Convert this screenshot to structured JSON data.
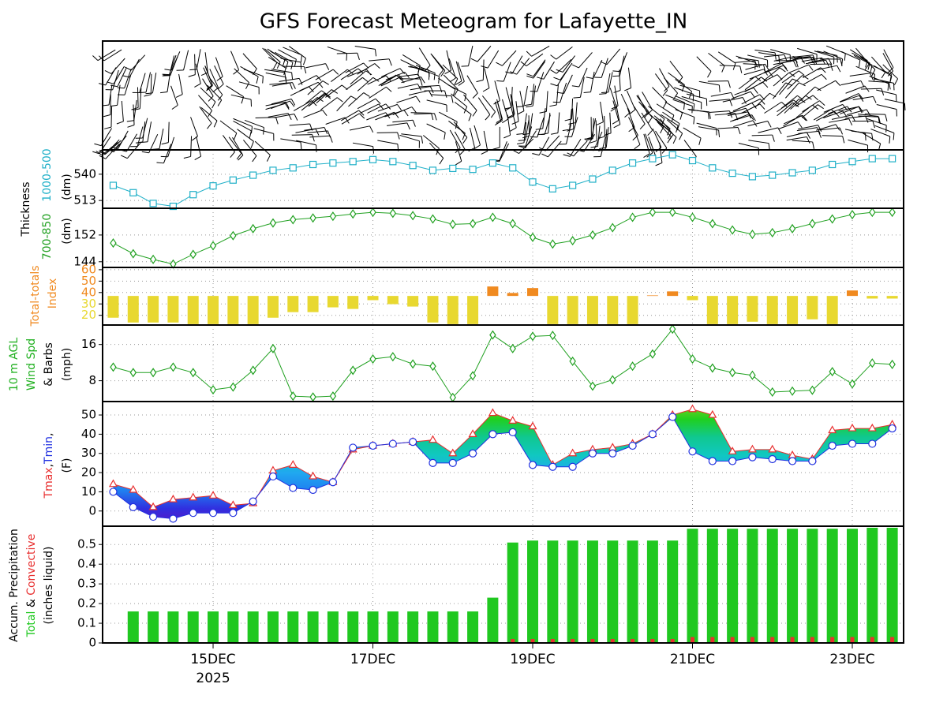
{
  "title": "GFS Forecast Meteogram for Lafayette_IN",
  "time_axis": {
    "x": [
      13.75,
      14,
      14.25,
      14.5,
      14.75,
      15,
      15.25,
      15.5,
      15.75,
      16,
      16.25,
      16.5,
      16.75,
      17,
      17.25,
      17.5,
      17.75,
      18,
      18.25,
      18.5,
      18.75,
      19,
      19.25,
      19.5,
      19.75,
      20,
      20.25,
      20.5,
      20.75,
      21,
      21.25,
      21.5,
      21.75,
      22,
      22.25,
      22.5,
      22.75,
      23,
      23.25,
      23.5
    ],
    "xlim": [
      13.617,
      23.642
    ],
    "xticks": [
      {
        "value": 15,
        "label": "15DEC"
      },
      {
        "value": 17,
        "label": "17DEC"
      },
      {
        "value": 19,
        "label": "19DEC"
      },
      {
        "value": 21,
        "label": "21DEC"
      },
      {
        "value": 23,
        "label": "23DEC"
      }
    ],
    "year_label": "2025"
  },
  "chart_data": [
    {
      "type": "line",
      "ylabel": "Thickness",
      "unit": "(dm)",
      "marker": "square",
      "ylim": [
        505,
        565
      ],
      "yticks": [
        513,
        540
      ],
      "grid": true,
      "series": [
        {
          "name": "1000-500",
          "color": "#20b0c8",
          "values": [
            528.5,
            521,
            510,
            507,
            519,
            528,
            534,
            539,
            544,
            546.5,
            550,
            551.5,
            553,
            555,
            553,
            549,
            544,
            546,
            545,
            551.5,
            546.5,
            532,
            525,
            528.5,
            535,
            544,
            551.5,
            556,
            560,
            554,
            546.5,
            541,
            537.5,
            539,
            541.5,
            544,
            550,
            553,
            556,
            556
          ]
        }
      ]
    },
    {
      "type": "line",
      "unit": "(dm)",
      "marker": "diamond",
      "ylim": [
        142.3,
        160
      ],
      "yticks": [
        144,
        152
      ],
      "grid": true,
      "series": [
        {
          "name": "700-850",
          "color": "#20a020",
          "values": [
            149.6,
            146.4,
            144.7,
            143.3,
            146.2,
            148.8,
            151.8,
            153.9,
            155.6,
            156.6,
            157.1,
            157.6,
            158.3,
            158.8,
            158.5,
            157.8,
            156.8,
            155.2,
            155.4,
            157.3,
            155.4,
            151.3,
            149.3,
            150.3,
            152,
            154.2,
            157.3,
            158.8,
            158.8,
            157.3,
            155.4,
            153.5,
            152.2,
            152.7,
            153.9,
            155.4,
            156.8,
            158.1,
            158.8,
            158.8
          ]
        }
      ]
    },
    {
      "type": "bar",
      "ylabel": "Total-totals",
      "unit": "Index",
      "ylim": [
        11.5,
        62
      ],
      "yticks": [
        20,
        30,
        40,
        50,
        60
      ],
      "bar_base": 37,
      "color_above": "#f08a20",
      "color_below": "#e8d830",
      "label_color": "#f08a20",
      "grid": true,
      "values": [
        17.9,
        13.7,
        13.7,
        13.7,
        12.3,
        12.3,
        12.3,
        12.3,
        17.9,
        22.8,
        22.8,
        27,
        25.6,
        33.3,
        29.8,
        27.7,
        13.7,
        12.3,
        12.3,
        45.3,
        39.6,
        43.9,
        12.3,
        12.3,
        12.3,
        12.3,
        12.3,
        37.5,
        41,
        33.3,
        12.3,
        12.3,
        14.4,
        12.3,
        12.3,
        16.5,
        12.3,
        41.8,
        34.7,
        34.7
      ]
    },
    {
      "type": "line",
      "ylabel_lines": [
        "10 m AGL",
        "Wind Spd"
      ],
      "ylabel_color": "#20b020",
      "ylabel_extra": "& Barbs",
      "unit": "(mph)",
      "marker": "diamond",
      "ylim": [
        3.4,
        20.3
      ],
      "yticks": [
        8,
        16
      ],
      "grid": true,
      "series": [
        {
          "name": "Wind Spd",
          "color": "#20a020",
          "values": [
            11,
            9.8,
            9.8,
            11,
            9.8,
            6,
            6.6,
            10.3,
            15.1,
            4.6,
            4.4,
            4.6,
            10.3,
            12.8,
            13.3,
            11.7,
            11.2,
            4.3,
            9.1,
            18.1,
            15.1,
            17.8,
            18,
            12.3,
            6.8,
            8.2,
            11.2,
            13.9,
            19.4,
            12.8,
            10.8,
            9.8,
            9.2,
            5.5,
            5.7,
            5.9,
            10,
            7.3,
            11.9,
            11.6
          ]
        }
      ]
    },
    {
      "type": "range",
      "unit": "(F)",
      "ylim": [
        -7.9,
        57
      ],
      "yticks": [
        0,
        10,
        20,
        30,
        40,
        50
      ],
      "grid": true,
      "separator": ",",
      "fill_colors": [
        "#6010c0",
        "#3030e0",
        "#2080f0",
        "#20a8f0",
        "#10c8c0",
        "#10c890",
        "#20d020",
        "#90d020"
      ],
      "series": [
        {
          "name": "Tmax",
          "color": "#e83030",
          "marker": "triangle",
          "values": [
            14,
            11,
            2,
            6,
            7,
            8,
            3,
            4,
            21,
            24,
            18,
            15,
            32,
            34,
            35,
            36,
            37,
            30,
            40,
            51,
            47,
            44,
            24,
            30,
            32,
            33,
            35,
            40,
            50,
            53,
            50,
            31,
            32,
            32,
            29,
            27,
            42,
            43,
            43,
            45
          ]
        },
        {
          "name": "Tmin",
          "color": "#2030e0",
          "marker": "circle",
          "values": [
            10,
            2,
            -3,
            -4,
            -1,
            -1,
            -1,
            5,
            18,
            12,
            11,
            15,
            33,
            34,
            35,
            36,
            25,
            25,
            30,
            40,
            41,
            24,
            23,
            23,
            30,
            30,
            34,
            40,
            49,
            31,
            26,
            26,
            28,
            27,
            26,
            26,
            34,
            35,
            35,
            43
          ]
        }
      ]
    },
    {
      "type": "bar",
      "ylabel": "Accum. Precipitation",
      "joiner": "&",
      "unit": "(inches liquid)",
      "ylim": [
        0,
        0.593
      ],
      "yticks": [
        0,
        0.1,
        0.2,
        0.3,
        0.4,
        0.5
      ],
      "grid": true,
      "series": [
        {
          "name": "Total",
          "color": "#20c820",
          "values": [
            0,
            0.16,
            0.16,
            0.16,
            0.16,
            0.16,
            0.16,
            0.16,
            0.16,
            0.16,
            0.16,
            0.16,
            0.16,
            0.16,
            0.16,
            0.16,
            0.16,
            0.16,
            0.16,
            0.23,
            0.51,
            0.52,
            0.52,
            0.52,
            0.52,
            0.52,
            0.52,
            0.52,
            0.52,
            0.58,
            0.58,
            0.58,
            0.58,
            0.58,
            0.58,
            0.58,
            0.58,
            0.58,
            0.585,
            0.585
          ]
        },
        {
          "name": "Convective",
          "color": "#e83030",
          "values": [
            0,
            0,
            0,
            0,
            0,
            0,
            0,
            0,
            0,
            0,
            0,
            0,
            0,
            0,
            0,
            0,
            0,
            0,
            0,
            0,
            0.02,
            0.02,
            0.02,
            0.02,
            0.02,
            0.02,
            0.02,
            0.02,
            0.02,
            0.03,
            0.03,
            0.03,
            0.03,
            0.03,
            0.03,
            0.03,
            0.03,
            0.03,
            0.03,
            0.03
          ]
        }
      ]
    }
  ]
}
